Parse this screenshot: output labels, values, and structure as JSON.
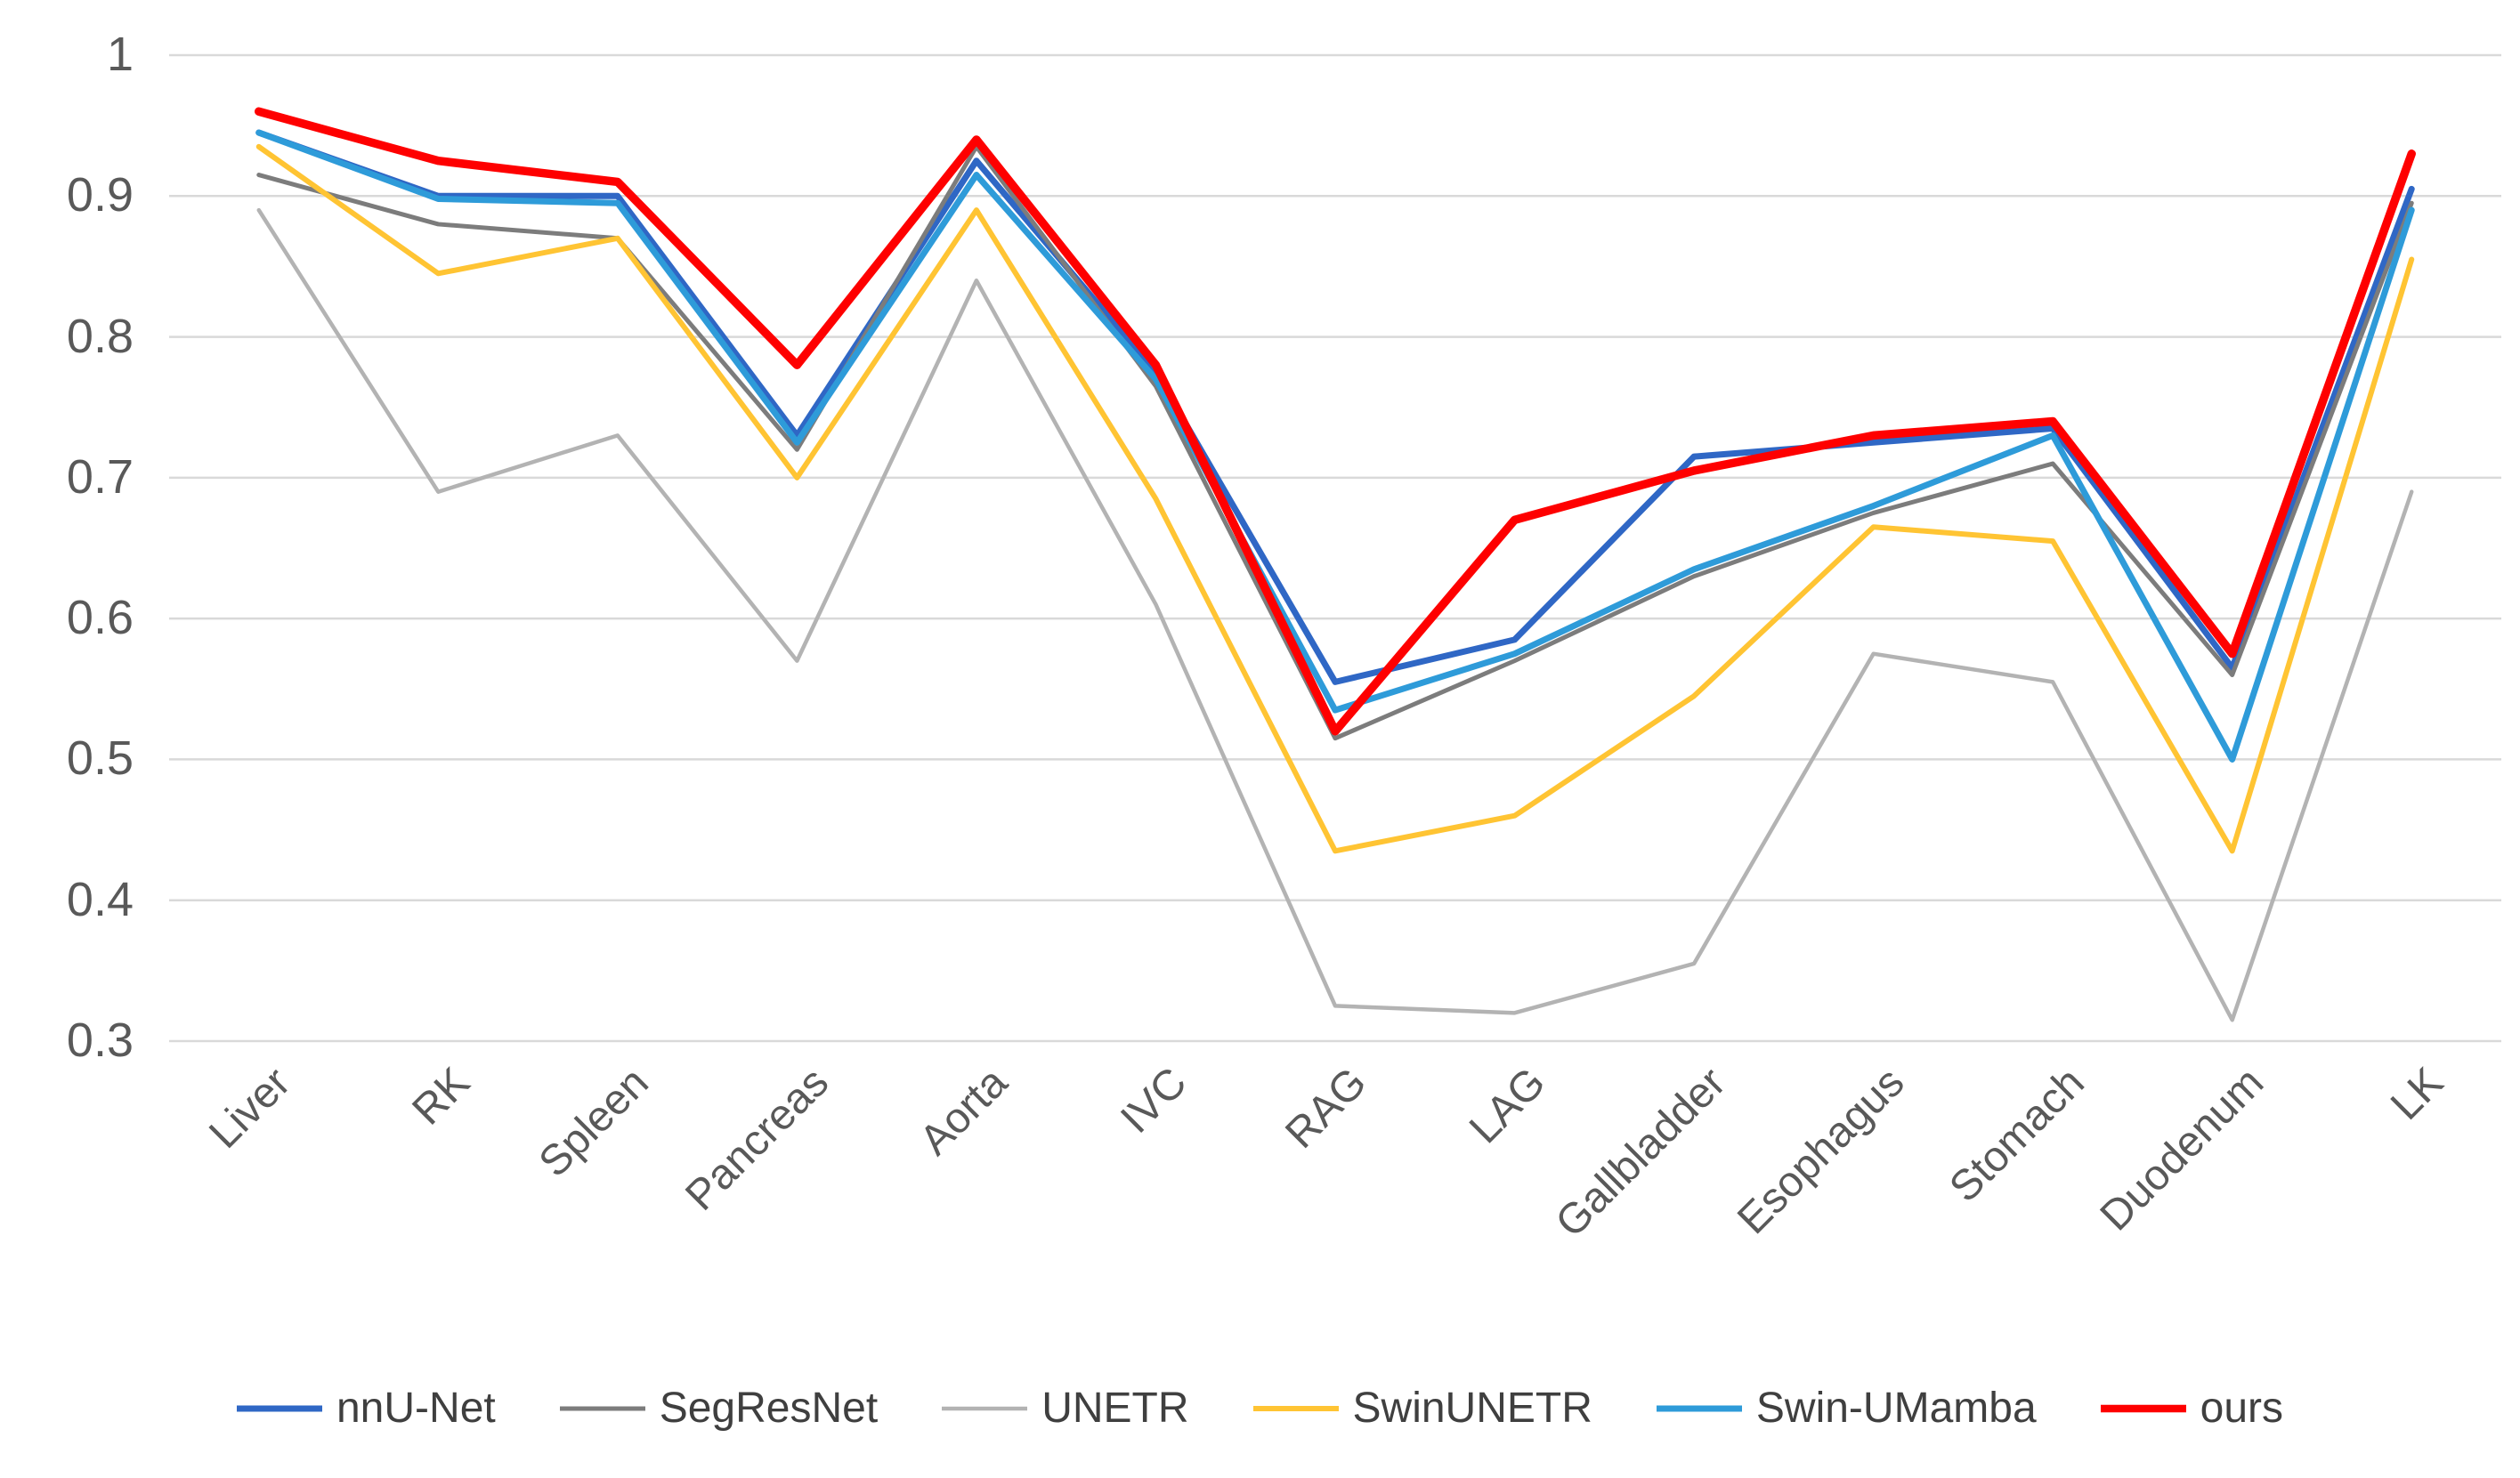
{
  "chart_data": {
    "type": "line",
    "title": "",
    "xlabel": "",
    "ylabel": "",
    "categories": [
      "Liver",
      "RK",
      "Spleen",
      "Pancreas",
      "Aorta",
      "IVC",
      "RAG",
      "LAG",
      "Gallbladder",
      "Esophagus",
      "Stomach",
      "Duodenum",
      "LK"
    ],
    "series": [
      {
        "name": "nnU-Net",
        "color": "#2F67C5",
        "line_width": 7,
        "values": [
          0.945,
          0.9,
          0.9,
          0.73,
          0.925,
          0.775,
          0.555,
          0.585,
          0.715,
          0.725,
          0.735,
          0.565,
          0.905
        ]
      },
      {
        "name": "SegResNet",
        "color": "#7C7C7C",
        "line_width": 5,
        "values": [
          0.915,
          0.88,
          0.87,
          0.72,
          0.935,
          0.765,
          0.515,
          0.57,
          0.63,
          0.675,
          0.71,
          0.56,
          0.895
        ]
      },
      {
        "name": "UNETR",
        "color": "#B3B3B3",
        "line_width": 4.5,
        "values": [
          0.89,
          0.69,
          0.73,
          0.57,
          0.84,
          0.61,
          0.325,
          0.32,
          0.355,
          0.575,
          0.555,
          0.315,
          0.69
        ]
      },
      {
        "name": "SwinUNETR",
        "color": "#FFC433",
        "line_width": 6,
        "values": [
          0.935,
          0.845,
          0.87,
          0.7,
          0.89,
          0.685,
          0.435,
          0.46,
          0.545,
          0.665,
          0.655,
          0.435,
          0.855
        ]
      },
      {
        "name": "Swin-UMamba",
        "color": "#2E9BD9",
        "line_width": 7,
        "values": [
          0.945,
          0.898,
          0.895,
          0.725,
          0.915,
          0.77,
          0.535,
          0.575,
          0.635,
          0.68,
          0.73,
          0.5,
          0.89
        ]
      },
      {
        "name": "ours",
        "color": "#FE0000",
        "line_width": 9.5,
        "values": [
          0.96,
          0.925,
          0.91,
          0.78,
          0.94,
          0.78,
          0.52,
          0.67,
          0.705,
          0.73,
          0.74,
          0.575,
          0.93
        ]
      }
    ],
    "y_ticks": [
      "1",
      "0.9",
      "0.8",
      "0.7",
      "0.6",
      "0.5",
      "0.4",
      "0.3"
    ],
    "y_tick_values": [
      1.0,
      0.9,
      0.8,
      0.7,
      0.6,
      0.5,
      0.4,
      0.3
    ],
    "ylim": [
      0.3,
      1.0
    ],
    "grid": true,
    "grid_color": "#D9D9D9",
    "axis_label_color": "#595959",
    "legend_text_color": "#3F3F3F",
    "legend_position": "bottom"
  }
}
